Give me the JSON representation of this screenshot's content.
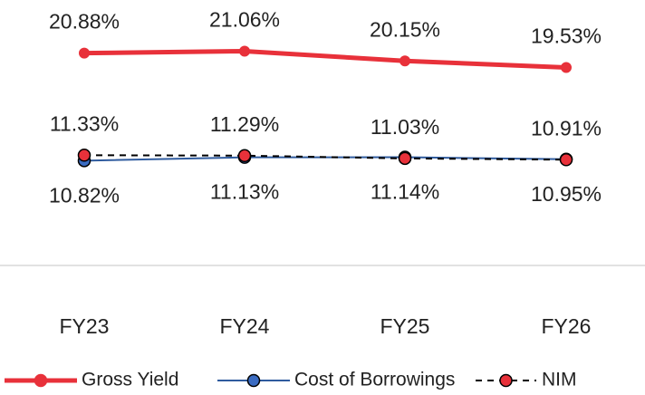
{
  "chart_data": {
    "type": "line",
    "categories": [
      "FY23",
      "FY24",
      "FY25",
      "FY26"
    ],
    "ylim": [
      0,
      25
    ],
    "series": [
      {
        "name": "Gross Yield",
        "color": "#e8313a",
        "marker_color": "#e8313a",
        "line_width": 5,
        "dashed": false,
        "label_position": "above",
        "values": [
          20.88,
          21.06,
          20.15,
          19.53
        ],
        "value_labels": [
          "20.88%",
          "21.06%",
          "20.15%",
          "19.53%"
        ]
      },
      {
        "name": "Cost of Borrowings",
        "color": "#2f5b9e",
        "marker_color": "#3b6cc2",
        "line_width": 2,
        "dashed": false,
        "label_position": "below",
        "values": [
          10.82,
          11.13,
          11.14,
          10.95
        ],
        "value_labels": [
          "10.82%",
          "11.13%",
          "11.14%",
          "10.95%"
        ]
      },
      {
        "name": "NIM",
        "color": "#000000",
        "marker_color": "#e8313a",
        "line_width": 2,
        "dashed": true,
        "label_position": "above",
        "values": [
          11.33,
          11.29,
          11.03,
          10.91
        ],
        "value_labels": [
          "11.33%",
          "11.29%",
          "11.03%",
          "10.91%"
        ]
      }
    ]
  }
}
